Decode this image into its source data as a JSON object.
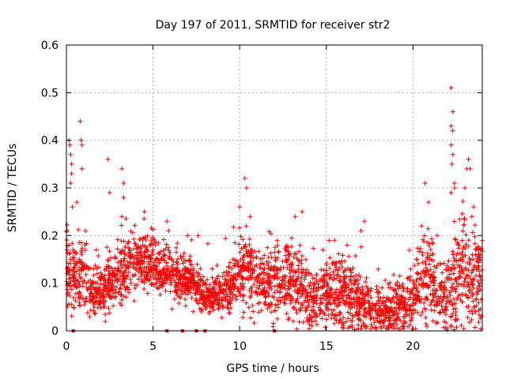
{
  "chart_data": {
    "type": "scatter",
    "title": "Day 197 of 2011, SRMTID for receiver str2",
    "xlabel": "GPS time / hours",
    "ylabel": "SRMTID / TECUs",
    "xlim": [
      0,
      24
    ],
    "ylim": [
      0,
      0.6
    ],
    "xticks": [
      "0",
      "5",
      "10",
      "15",
      "20"
    ],
    "xtick_values": [
      0,
      5,
      10,
      15,
      20
    ],
    "yticks": [
      "0",
      "0.1",
      "0.2",
      "0.3",
      "0.4",
      "0.5",
      "0.6"
    ],
    "ytick_values": [
      0,
      0.1,
      0.2,
      0.3,
      0.4,
      0.5,
      0.6
    ],
    "grid": true,
    "marker": "+",
    "color": "#ff0000",
    "profile": [
      [
        0.0,
        0.13,
        0.06
      ],
      [
        0.5,
        0.12,
        0.05
      ],
      [
        1.0,
        0.12,
        0.05
      ],
      [
        1.5,
        0.08,
        0.03
      ],
      [
        2.0,
        0.08,
        0.03
      ],
      [
        2.5,
        0.1,
        0.04
      ],
      [
        3.0,
        0.12,
        0.04
      ],
      [
        3.5,
        0.13,
        0.04
      ],
      [
        4.0,
        0.14,
        0.04
      ],
      [
        4.5,
        0.14,
        0.04
      ],
      [
        5.0,
        0.14,
        0.04
      ],
      [
        5.5,
        0.13,
        0.04
      ],
      [
        6.0,
        0.12,
        0.04
      ],
      [
        6.5,
        0.11,
        0.03
      ],
      [
        7.0,
        0.11,
        0.03
      ],
      [
        7.5,
        0.1,
        0.03
      ],
      [
        8.0,
        0.07,
        0.02
      ],
      [
        8.5,
        0.07,
        0.02
      ],
      [
        9.0,
        0.08,
        0.03
      ],
      [
        9.5,
        0.1,
        0.04
      ],
      [
        10.0,
        0.12,
        0.05
      ],
      [
        10.5,
        0.13,
        0.06
      ],
      [
        11.0,
        0.1,
        0.04
      ],
      [
        11.5,
        0.1,
        0.04
      ],
      [
        12.0,
        0.1,
        0.05
      ],
      [
        12.5,
        0.11,
        0.05
      ],
      [
        13.0,
        0.1,
        0.05
      ],
      [
        13.5,
        0.1,
        0.05
      ],
      [
        14.0,
        0.06,
        0.04
      ],
      [
        14.5,
        0.07,
        0.04
      ],
      [
        15.0,
        0.08,
        0.05
      ],
      [
        15.5,
        0.08,
        0.05
      ],
      [
        16.0,
        0.08,
        0.05
      ],
      [
        16.5,
        0.07,
        0.05
      ],
      [
        17.0,
        0.05,
        0.04
      ],
      [
        17.5,
        0.04,
        0.03
      ],
      [
        18.0,
        0.04,
        0.03
      ],
      [
        18.5,
        0.04,
        0.03
      ],
      [
        19.0,
        0.05,
        0.04
      ],
      [
        19.5,
        0.05,
        0.04
      ],
      [
        20.0,
        0.06,
        0.05
      ],
      [
        20.5,
        0.11,
        0.07
      ],
      [
        21.0,
        0.11,
        0.07
      ],
      [
        21.5,
        0.06,
        0.04
      ],
      [
        22.0,
        0.08,
        0.06
      ],
      [
        22.5,
        0.12,
        0.08
      ],
      [
        23.0,
        0.12,
        0.08
      ],
      [
        23.5,
        0.1,
        0.07
      ],
      [
        24.0,
        0.1,
        0.07
      ]
    ],
    "outliers": [
      [
        0.15,
        0.4
      ],
      [
        0.2,
        0.39
      ],
      [
        0.25,
        0.37
      ],
      [
        0.3,
        0.35
      ],
      [
        0.3,
        0.33
      ],
      [
        0.25,
        0.31
      ],
      [
        0.35,
        0.26
      ],
      [
        0.8,
        0.44
      ],
      [
        0.85,
        0.4
      ],
      [
        0.9,
        0.39
      ],
      [
        0.9,
        0.34
      ],
      [
        0.6,
        0.27
      ],
      [
        1.1,
        0.21
      ],
      [
        2.4,
        0.36
      ],
      [
        2.5,
        0.29
      ],
      [
        3.2,
        0.34
      ],
      [
        3.3,
        0.31
      ],
      [
        3.3,
        0.28
      ],
      [
        3.2,
        0.24
      ],
      [
        4.5,
        0.25
      ],
      [
        5.8,
        0.23
      ],
      [
        5.9,
        0.21
      ],
      [
        7.0,
        0.2
      ],
      [
        7.6,
        0.2
      ],
      [
        10.0,
        0.26
      ],
      [
        10.3,
        0.32
      ],
      [
        10.4,
        0.3
      ],
      [
        10.6,
        0.24
      ],
      [
        13.6,
        0.25
      ],
      [
        13.2,
        0.24
      ],
      [
        17.0,
        0.21
      ],
      [
        17.2,
        0.23
      ],
      [
        16.2,
        0.18
      ],
      [
        20.5,
        0.22
      ],
      [
        20.7,
        0.31
      ],
      [
        20.9,
        0.27
      ],
      [
        21.4,
        0.2
      ],
      [
        22.2,
        0.51
      ],
      [
        22.3,
        0.46
      ],
      [
        22.2,
        0.43
      ],
      [
        22.3,
        0.42
      ],
      [
        22.2,
        0.39
      ],
      [
        22.3,
        0.37
      ],
      [
        22.25,
        0.35
      ],
      [
        22.4,
        0.31
      ],
      [
        22.4,
        0.3
      ],
      [
        22.2,
        0.29
      ],
      [
        23.0,
        0.3
      ],
      [
        23.1,
        0.34
      ],
      [
        23.2,
        0.36
      ],
      [
        23.3,
        0.34
      ],
      [
        23.5,
        0.26
      ],
      [
        23.4,
        0.24
      ],
      [
        23.8,
        0.16
      ],
      [
        23.6,
        0.04
      ]
    ],
    "baseline_points": [
      0.4,
      5.8,
      6.7,
      7.5,
      8.0,
      12.0
    ]
  }
}
